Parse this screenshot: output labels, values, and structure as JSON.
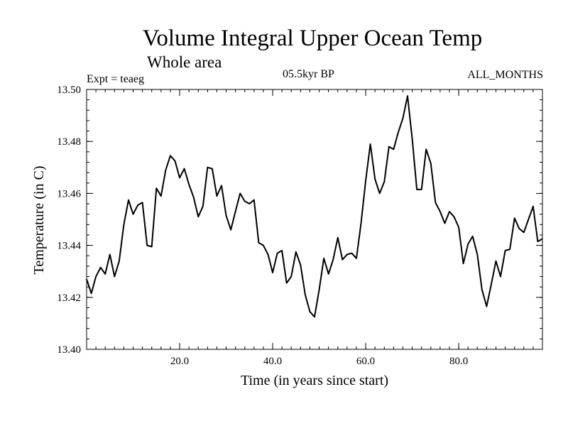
{
  "chart_data": {
    "type": "line",
    "title": "Volume Integral Upper Ocean Temp",
    "subtitle": "Whole area",
    "annotation_left": "Expt = teaeg",
    "annotation_center": "05.5kyr BP",
    "annotation_right": "ALL_MONTHS",
    "xlabel": "Time (in years since start)",
    "ylabel": "Temperature (in C)",
    "xlim": [
      0,
      98
    ],
    "ylim": [
      13.4,
      13.5
    ],
    "x_ticks": [
      {
        "value": 20,
        "label": "20.0"
      },
      {
        "value": 40,
        "label": "40.0"
      },
      {
        "value": 60,
        "label": "60.0"
      },
      {
        "value": 80,
        "label": "80.0"
      }
    ],
    "y_ticks": [
      {
        "value": 13.4,
        "label": "13.40"
      },
      {
        "value": 13.42,
        "label": "13.42"
      },
      {
        "value": 13.44,
        "label": "13.44"
      },
      {
        "value": 13.46,
        "label": "13.46"
      },
      {
        "value": 13.48,
        "label": "13.48"
      },
      {
        "value": 13.5,
        "label": "13.50"
      }
    ],
    "x_minor_step": 2,
    "y_minor_step": 0.004,
    "series": [
      {
        "name": "teaeg",
        "x": [
          0,
          1,
          2,
          3,
          4,
          5,
          6,
          7,
          8,
          9,
          10,
          11,
          12,
          13,
          14,
          15,
          16,
          17,
          18,
          19,
          20,
          21,
          22,
          23,
          24,
          25,
          26,
          27,
          28,
          29,
          30,
          31,
          32,
          33,
          34,
          35,
          36,
          37,
          38,
          39,
          40,
          41,
          42,
          43,
          44,
          45,
          46,
          47,
          48,
          49,
          50,
          51,
          52,
          53,
          54,
          55,
          56,
          57,
          58,
          59,
          60,
          61,
          62,
          63,
          64,
          65,
          66,
          67,
          68,
          69,
          70,
          71,
          72,
          73,
          74,
          75,
          76,
          77,
          78,
          79,
          80,
          81,
          82,
          83,
          84,
          85,
          86,
          87,
          88,
          89,
          90,
          91,
          92,
          93,
          94,
          95,
          96,
          97,
          98
        ],
        "values": [
          13.427,
          13.4215,
          13.428,
          13.4315,
          13.429,
          13.4365,
          13.428,
          13.434,
          13.448,
          13.4575,
          13.452,
          13.4555,
          13.4565,
          13.44,
          13.4395,
          13.462,
          13.459,
          13.469,
          13.4745,
          13.4725,
          13.466,
          13.4695,
          13.4635,
          13.4585,
          13.451,
          13.455,
          13.47,
          13.4695,
          13.459,
          13.463,
          13.4515,
          13.446,
          13.453,
          13.46,
          13.457,
          13.456,
          13.4575,
          13.441,
          13.44,
          13.4365,
          13.4295,
          13.437,
          13.438,
          13.4255,
          13.428,
          13.4375,
          13.4325,
          13.421,
          13.4145,
          13.4125,
          13.423,
          13.435,
          13.429,
          13.4345,
          13.443,
          13.4345,
          13.4365,
          13.437,
          13.435,
          13.4485,
          13.465,
          13.479,
          13.4655,
          13.46,
          13.4645,
          13.478,
          13.477,
          13.4835,
          13.489,
          13.4975,
          13.481,
          13.4615,
          13.4615,
          13.477,
          13.4715,
          13.4565,
          13.453,
          13.4485,
          13.453,
          13.451,
          13.447,
          13.433,
          13.4405,
          13.4435,
          13.4365,
          13.423,
          13.4165,
          13.425,
          13.434,
          13.428,
          13.438,
          13.4385,
          13.4505,
          13.4465,
          13.445,
          13.45,
          13.455,
          13.4415,
          13.4425
        ]
      }
    ]
  }
}
